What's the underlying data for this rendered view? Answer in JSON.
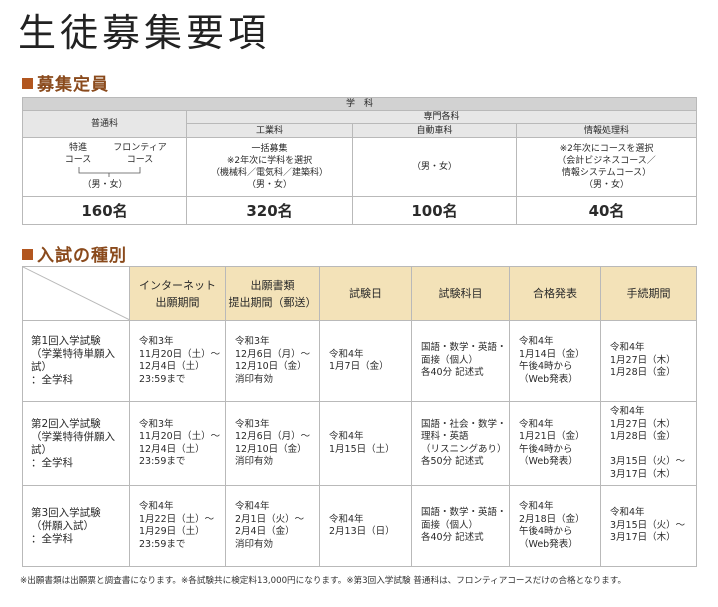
{
  "title": "生徒募集要項",
  "section1": "募集定員",
  "section2": "入試の種別",
  "capacity": {
    "gakka": "学　科",
    "futsuka": "普通科",
    "senmon": "専門各科",
    "kogyo": "工業科",
    "jidosha": "自動車科",
    "joho": "情報処理科",
    "futsu_left": "特進\nコース",
    "futsu_right": "フロンティア\nコース",
    "futsu_sex": "（男・女）",
    "kogyo_desc": "一括募集\n※2年次に学科を選択\n（機械科／電気科／建築科）\n（男・女）",
    "jidosha_desc": "（男・女）",
    "joho_desc": "※2年次にコースを選択\n（会計ビジネスコース／\n情報システムコース）\n（男・女）",
    "n_futsu": "160名",
    "n_kogyo": "320名",
    "n_jidosha": "100名",
    "n_joho": "40名"
  },
  "exam": {
    "headers": [
      "インターネット\n出願期間",
      "出願書類\n提出期間（郵送）",
      "試験日",
      "試験科目",
      "合格発表",
      "手続期間"
    ],
    "rows": [
      {
        "name": "第1回入学試験\n（学業特待単願入試）\n：全学科",
        "cells": [
          "令和3年\n11月20日（土）〜\n12月4日（土）\n23:59まで",
          "令和3年\n12月6日（月）〜\n12月10日（金）\n消印有効",
          "令和4年\n1月7日（金）",
          "国語・数学・英語・\n面接（個人）\n各40分 記述式",
          "令和4年\n1月14日（金）\n午後4時から\n（Web発表）",
          "令和4年\n1月27日（木）\n1月28日（金）"
        ]
      },
      {
        "name": "第2回入学試験\n（学業特待併願入試）\n：全学科",
        "cells": [
          "令和3年\n11月20日（土）〜\n12月4日（土）\n23:59まで",
          "令和3年\n12月6日（月）〜\n12月10日（金）\n消印有効",
          "令和4年\n1月15日（土）",
          "国語・社会・数学・\n理科・英語\n（リスニングあり）\n各50分 記述式",
          "令和4年\n1月21日（金）\n午後4時から\n（Web発表）",
          "令和4年\n1月27日（木）\n1月28日（金）\n\n3月15日（火）〜\n3月17日（木）"
        ]
      },
      {
        "name": "第3回入学試験\n（併願入試）\n：全学科",
        "cells": [
          "令和4年\n1月22日（土）〜\n1月29日（土）\n23:59まで",
          "令和4年\n2月1日（火）〜\n2月4日（金）\n消印有効",
          "令和4年\n2月13日（日）",
          "国語・数学・英語・\n面接（個人）\n各40分 記述式",
          "令和4年\n2月18日（金）\n午後4時から\n（Web発表）",
          "令和4年\n3月15日（火）〜\n3月17日（木）"
        ]
      }
    ]
  },
  "note": "※出願書類は出願票と調査書になります。※各試験共に検定料13,000円になります。※第3回入学試験 普通科は、フロンティアコースだけの合格となります。"
}
